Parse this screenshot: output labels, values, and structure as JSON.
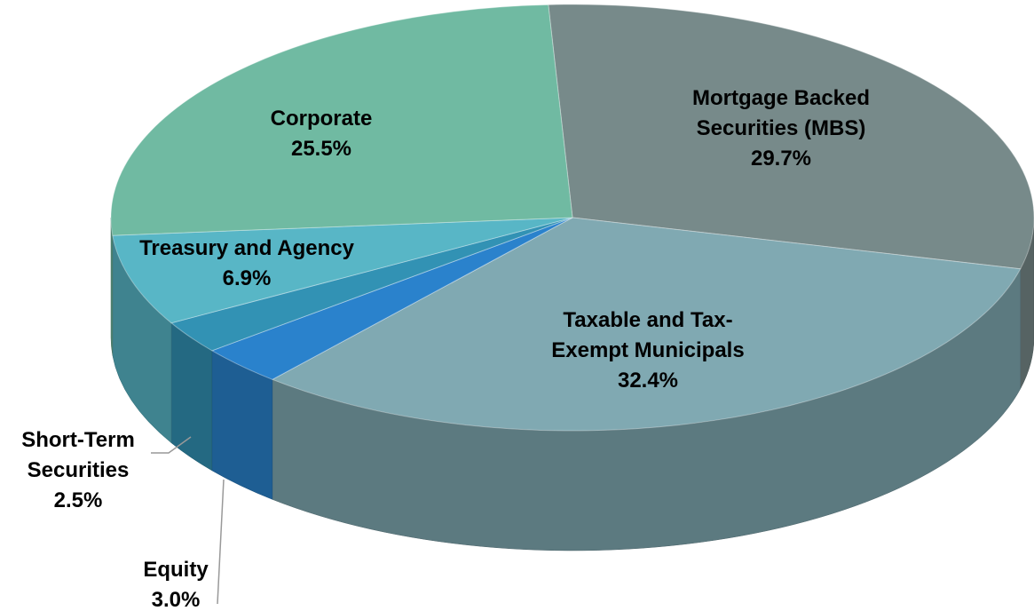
{
  "chart_data": {
    "type": "pie3d",
    "categories": [
      [
        "Mortgage Backed",
        "Securities (MBS)"
      ],
      [
        "Taxable and Tax-",
        "Exempt Municipals"
      ],
      [
        "Equity"
      ],
      [
        "Short-Term",
        "Securities"
      ],
      [
        "Treasury and Agency"
      ],
      [
        "Corporate"
      ]
    ],
    "values": [
      29.7,
      32.4,
      3.0,
      2.5,
      6.9,
      25.5
    ],
    "value_labels": [
      "29.7%",
      "32.4%",
      "3.0%",
      "2.5%",
      "6.9%",
      "25.5%"
    ],
    "colors": [
      "#778a8a",
      "#80a9b2",
      "#2a82cc",
      "#3292b4",
      "#58b6c6",
      "#70baa2"
    ]
  }
}
